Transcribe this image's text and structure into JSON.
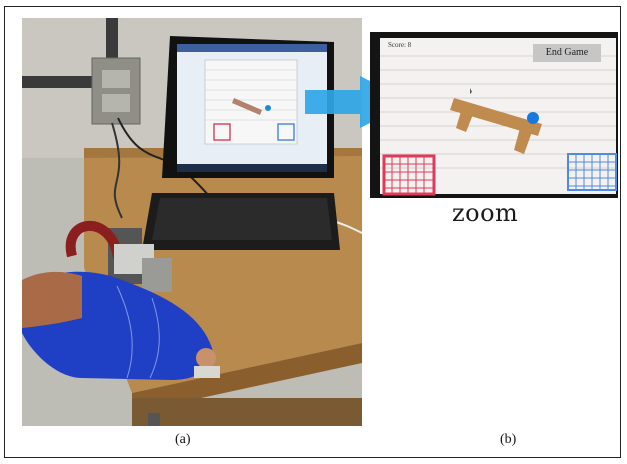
{
  "game": {
    "score_label": "Score: 8",
    "end_game_label": "End Game"
  },
  "zoom_label": "zoom",
  "captions": {
    "a": "(a)",
    "b": "(b)"
  },
  "colors": {
    "arrow": "#2ea6e6",
    "glove": "#1f3fc4",
    "platform": "#c08b4e",
    "ball": "#1877e0",
    "left_basket": "#e03a5a",
    "right_basket": "#4f8be6"
  }
}
